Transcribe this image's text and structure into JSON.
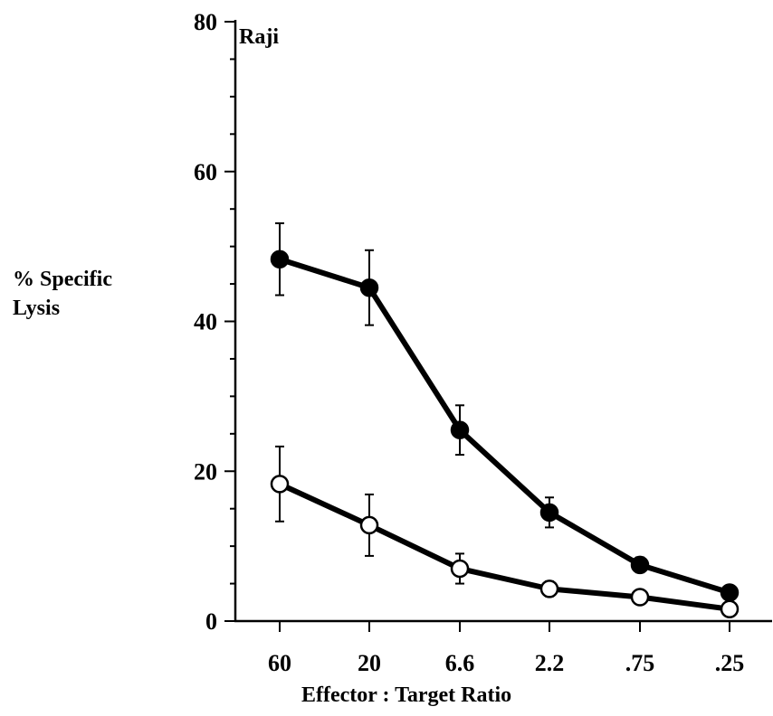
{
  "chart_data": {
    "type": "line",
    "panel_label": "Raji",
    "ylabel_line1": "% Specific",
    "ylabel_line2": "Lysis",
    "xlabel": "Effector : Target Ratio",
    "categories": [
      "60",
      "20",
      "6.6",
      "2.2",
      ".75",
      ".25"
    ],
    "ylim": [
      0,
      80
    ],
    "yticks": [
      0,
      20,
      40,
      60,
      80
    ],
    "grid": false,
    "series": [
      {
        "marker": "filled-circle",
        "color": "#000000",
        "values": [
          48.3,
          44.5,
          25.5,
          14.5,
          7.5,
          3.8
        ],
        "error": [
          4.8,
          5.0,
          3.3,
          2.0,
          1.0,
          0.4
        ]
      },
      {
        "marker": "open-circle",
        "color": "#000000",
        "values": [
          18.3,
          12.8,
          7.0,
          4.3,
          3.2,
          1.6
        ],
        "error": [
          5.0,
          4.1,
          2.0,
          1.0,
          0.6,
          0.3
        ]
      }
    ]
  }
}
